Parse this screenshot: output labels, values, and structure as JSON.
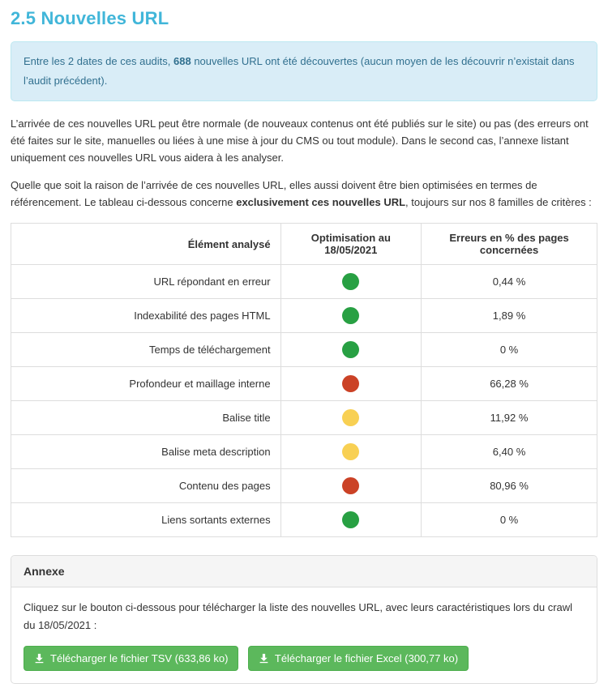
{
  "page": {
    "title": "2.5 Nouvelles URL"
  },
  "colors": {
    "title_accent": "#41b6d9",
    "info_bg": "#d9edf7",
    "info_border": "#bce8f1",
    "info_text": "#31708f",
    "green": "#28a043",
    "red": "#cb4226",
    "yellow": "#f8d053",
    "button_bg": "#5cb85c",
    "button_border": "#4cae4c"
  },
  "info_box": {
    "segments": [
      {
        "text": "Entre les 2 dates de ces audits, ",
        "bold": false
      },
      {
        "text": "688",
        "bold": true
      },
      {
        "text": " nouvelles URL ont été découvertes (aucun moyen de les découvrir n’existait dans l’audit précédent).",
        "bold": false
      }
    ]
  },
  "paragraphs": [
    {
      "segments": [
        {
          "text": "L’arrivée de ces nouvelles URL peut être normale (de nouveaux contenus ont été publiés sur le site) ou pas (des erreurs ont été faites sur le site, manuelles ou liées à une mise à jour du CMS ou tout module). Dans le second cas, l’annexe listant uniquement ces nouvelles URL vous aidera à les analyser.",
          "bold": false
        }
      ]
    },
    {
      "segments": [
        {
          "text": "Quelle que soit la raison de l’arrivée de ces nouvelles URL, elles aussi doivent être bien optimisées en termes de référencement. Le tableau ci-dessous concerne ",
          "bold": false
        },
        {
          "text": "exclusivement ces nouvelles URL",
          "bold": true
        },
        {
          "text": ", toujours sur nos 8 familles de critères :",
          "bold": false
        }
      ]
    }
  ],
  "table": {
    "headers": [
      "Élément analysé",
      "Optimisation au 18/05/2021",
      "Erreurs en % des pages concernées"
    ],
    "rows": [
      {
        "label": "URL répondant en erreur",
        "status": "green",
        "value": "0,44 %"
      },
      {
        "label": "Indexabilité des pages HTML",
        "status": "green",
        "value": "1,89 %"
      },
      {
        "label": "Temps de téléchargement",
        "status": "green",
        "value": "0 %"
      },
      {
        "label": "Profondeur et maillage interne",
        "status": "red",
        "value": "66,28 %"
      },
      {
        "label": "Balise title",
        "status": "yellow",
        "value": "11,92 %"
      },
      {
        "label": "Balise meta description",
        "status": "yellow",
        "value": "6,40 %"
      },
      {
        "label": "Contenu des pages",
        "status": "red",
        "value": "80,96 %"
      },
      {
        "label": "Liens sortants externes",
        "status": "green",
        "value": "0 %"
      }
    ]
  },
  "annexe": {
    "title": "Annexe",
    "description": "Cliquez sur le bouton ci-dessous pour télécharger la liste des nouvelles URL, avec leurs caractéristiques lors du crawl du 18/05/2021 :",
    "buttons": [
      {
        "label": "Télécharger le fichier TSV (633,86 ko)",
        "icon": "download-icon"
      },
      {
        "label": "Télécharger le fichier Excel (300,77 ko)",
        "icon": "download-icon"
      }
    ]
  }
}
